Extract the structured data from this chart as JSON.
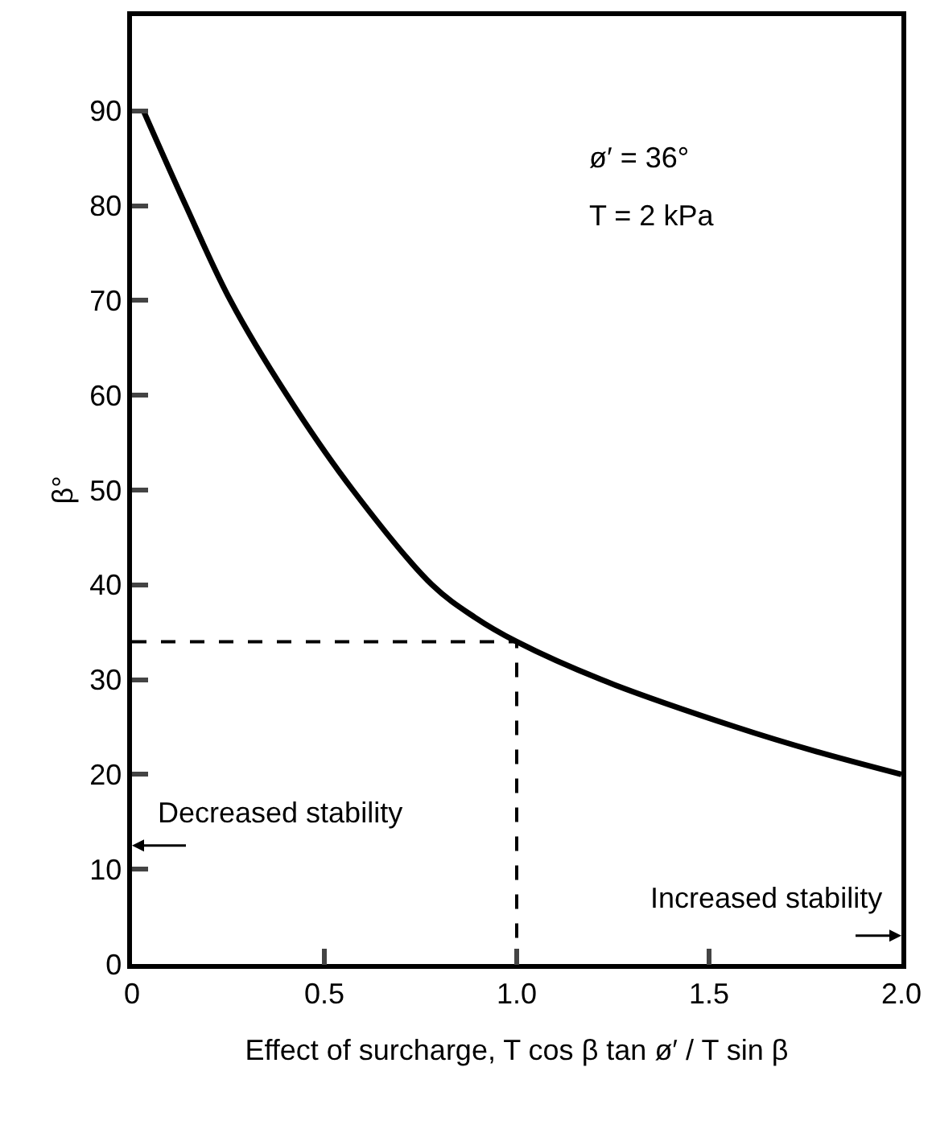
{
  "chart_data": {
    "type": "line",
    "xlabel": "Effect of surcharge, T cos β tan ø′ / T sin β",
    "ylabel": "β°",
    "annotations": [
      "ø′ = 36°",
      "T = 2 kPa",
      "Decreased stability",
      "Increased stability"
    ],
    "series": [
      {
        "color": "#000000",
        "x": [
          0.03,
          0.14,
          0.256,
          0.403,
          0.574,
          0.78,
          0.89,
          1.0,
          1.22,
          1.57,
          1.78,
          2.0
        ],
        "values": [
          90,
          80,
          70,
          60,
          50,
          40,
          36.6,
          34,
          30,
          25,
          22.4,
          20
        ],
        "line_style": "solid"
      },
      {
        "color": "#000000",
        "x": [
          0,
          1,
          1
        ],
        "values": [
          34,
          34,
          0
        ],
        "line_style": "dashed"
      }
    ],
    "xlim": [
      0,
      2
    ],
    "xticks": [
      0,
      0.5,
      {
        "value": 1,
        "label": "1.0"
      },
      1.5,
      {
        "value": 2,
        "label": "2.0"
      }
    ],
    "ylim": [
      0,
      100
    ],
    "yticks": [
      0,
      10,
      20,
      30,
      40,
      50,
      60,
      70,
      80,
      90
    ],
    "grid": false,
    "marker": "none"
  }
}
